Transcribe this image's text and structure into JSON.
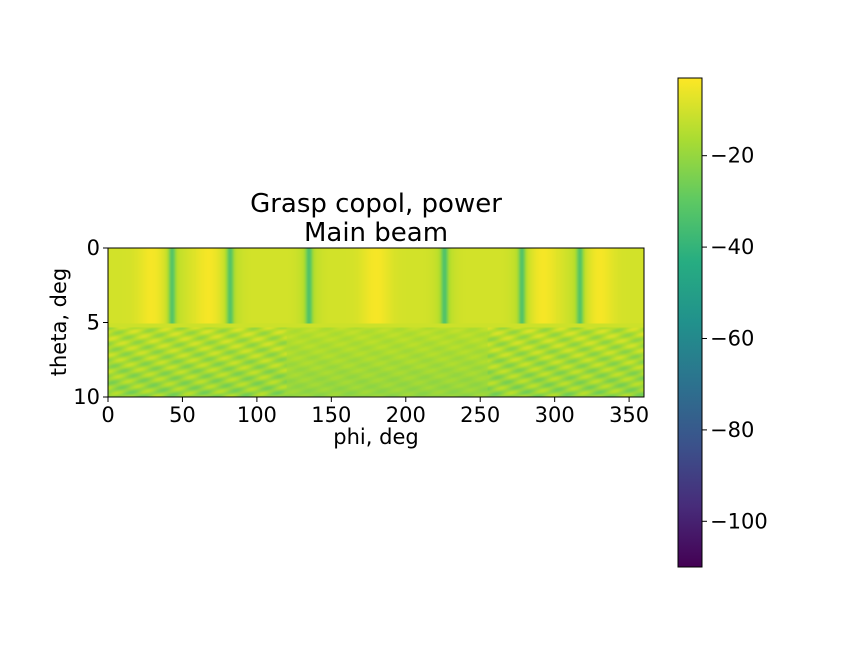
{
  "chart_data": {
    "type": "heatmap",
    "title": "Grasp copol, power",
    "subtitle": "Main beam",
    "xlabel": "phi, deg",
    "ylabel": "theta, deg",
    "xlim": [
      0,
      360
    ],
    "ylim": [
      10,
      0
    ],
    "x_ticks": [
      {
        "value": 0,
        "label": "0"
      },
      {
        "value": 50,
        "label": "50"
      },
      {
        "value": 100,
        "label": "100"
      },
      {
        "value": 150,
        "label": "150"
      },
      {
        "value": 200,
        "label": "200"
      },
      {
        "value": 250,
        "label": "250"
      },
      {
        "value": 300,
        "label": "300"
      },
      {
        "value": 350,
        "label": "350"
      }
    ],
    "y_ticks": [
      {
        "value": 0,
        "label": "0"
      },
      {
        "value": 5,
        "label": "5"
      },
      {
        "value": 10,
        "label": "10"
      }
    ],
    "colorbar": {
      "colormap": "viridis",
      "vmin": -110,
      "vmax": -3,
      "ticks": [
        {
          "value": -20,
          "label": "−20"
        },
        {
          "value": -40,
          "label": "−40"
        },
        {
          "value": -60,
          "label": "−60"
        },
        {
          "value": -80,
          "label": "−80"
        },
        {
          "value": -100,
          "label": "−100"
        }
      ]
    },
    "main_beam_theta_edge": 5.1,
    "dip_phis": [
      43,
      82,
      135,
      226,
      278,
      317
    ],
    "bright_phis": [
      30,
      68,
      180,
      292,
      330
    ],
    "values_description_free": true
  }
}
